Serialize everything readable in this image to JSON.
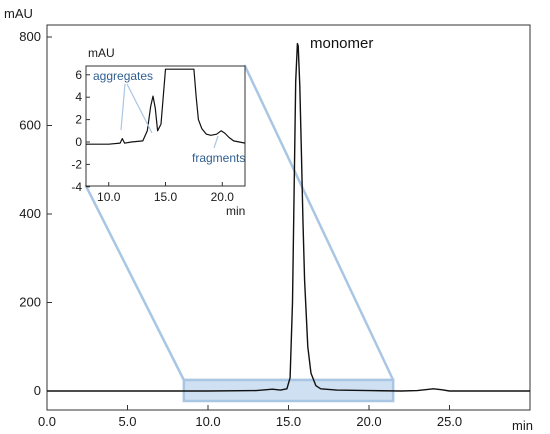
{
  "colors": {
    "trace": "#111111",
    "axis": "#333333",
    "highlight_fill": "#cfe0f2",
    "highlight_stroke": "#a9c6e3",
    "inset_annotation": "#2f5f8f"
  },
  "chart_data": [
    {
      "type": "line",
      "title": "",
      "xlabel": "min",
      "ylabel": "mAU",
      "xlim": [
        0.0,
        30.0
      ],
      "ylim": [
        -30,
        800
      ],
      "x_ticks": [
        "0.0",
        "5.0",
        "10.0",
        "15.0",
        "20.0",
        "25.0"
      ],
      "y_ticks": [
        "0",
        "200",
        "400",
        "600",
        "800"
      ],
      "grid": false,
      "series": [
        {
          "x": [
            0.0,
            5.0,
            10.0,
            13.0,
            14.0,
            14.5,
            14.9,
            15.1,
            15.25,
            15.35,
            15.45,
            15.55,
            15.6,
            15.7,
            15.8,
            15.9,
            16.0,
            16.2,
            16.4,
            16.7,
            17.0,
            18.0,
            20.0,
            22.0,
            23.0,
            24.0,
            24.5,
            25.0,
            27.0,
            30.0
          ],
          "y": [
            0,
            0,
            0,
            1,
            4,
            2,
            5,
            30,
            200,
            450,
            700,
            785,
            780,
            690,
            540,
            380,
            250,
            100,
            40,
            12,
            5,
            2,
            1,
            0,
            1,
            5,
            3,
            0,
            0,
            0
          ]
        }
      ],
      "annotations": [
        "monomer"
      ],
      "highlight_range": {
        "x": [
          8.5,
          21.5
        ]
      }
    },
    {
      "type": "line",
      "title": "",
      "xlabel": "min",
      "ylabel": "mAU",
      "xlim": [
        8.0,
        22.0
      ],
      "ylim": [
        -4,
        6.5
      ],
      "x_ticks": [
        "10.0",
        "15.0",
        "20.0"
      ],
      "y_ticks": [
        "6",
        "4",
        "2",
        "0",
        "-2",
        "-4"
      ],
      "grid": false,
      "series": [
        {
          "x": [
            8.0,
            10.0,
            11.0,
            11.2,
            11.4,
            12.0,
            13.0,
            13.4,
            13.7,
            13.9,
            14.1,
            14.3,
            14.6,
            14.8,
            15.0,
            15.1,
            17.5,
            17.7,
            17.9,
            18.2,
            18.6,
            19.0,
            19.5,
            19.9,
            20.2,
            20.6,
            21.0,
            22.0
          ],
          "y": [
            -0.2,
            -0.2,
            -0.1,
            0.3,
            -0.1,
            0.0,
            0.1,
            1.0,
            3.2,
            4.1,
            3.0,
            1.0,
            1.6,
            4.0,
            6.5,
            6.5,
            6.5,
            4.0,
            2.0,
            1.2,
            0.7,
            0.6,
            0.7,
            1.0,
            0.8,
            0.4,
            0.1,
            -0.1
          ]
        }
      ],
      "annotations": [
        "aggregates",
        "fragments"
      ]
    }
  ]
}
